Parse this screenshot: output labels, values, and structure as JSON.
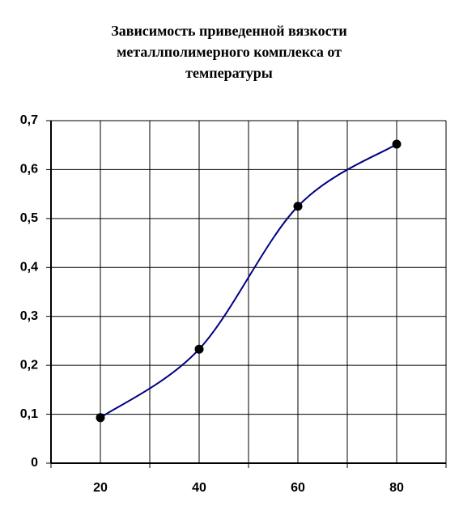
{
  "chart_data": {
    "type": "line",
    "title": [
      "Зависимость приведенной вязкости",
      "металлполимерного комплекса от",
      "температуры"
    ],
    "categories": [
      "20",
      "40",
      "60",
      "80"
    ],
    "values": [
      0.093,
      0.233,
      0.525,
      0.652
    ],
    "color": "#000080",
    "marker_color": "#000000",
    "ylim": [
      0,
      0.7
    ],
    "yticks": [
      0,
      {
        "value": 0.1,
        "label": "0,1"
      },
      {
        "value": 0.2,
        "label": "0,2"
      },
      {
        "value": 0.3,
        "label": "0,3"
      },
      {
        "value": 0.4,
        "label": "0,4"
      },
      {
        "value": 0.5,
        "label": "0,5"
      },
      {
        "value": 0.6,
        "label": "0,6"
      },
      {
        "value": 0.7,
        "label": "0,7"
      }
    ],
    "grid": true,
    "smooth": true
  }
}
